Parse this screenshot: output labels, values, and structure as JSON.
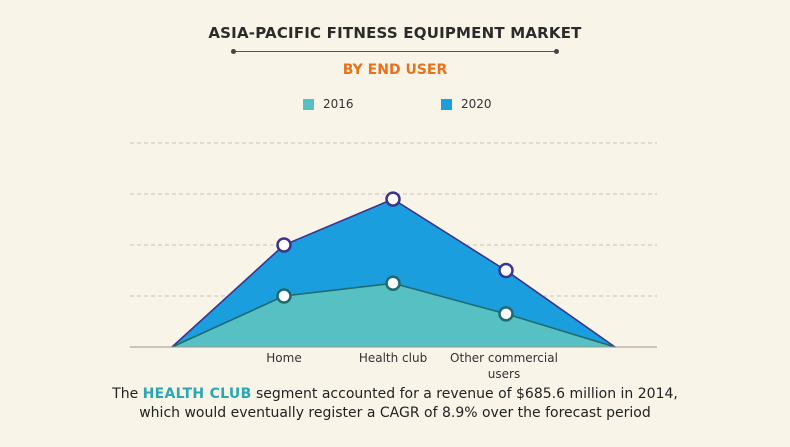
{
  "header": {
    "title": "ASIA-PACIFIC FITNESS EQUIPMENT MARKET",
    "subtitle": "BY END USER"
  },
  "colors": {
    "subtitle": "#e8711c",
    "series_2016_fill": "#56c0c2",
    "series_2016_line": "#1f6b6e",
    "series_2020_fill": "#1a9ede",
    "series_2020_line": "#3a3490",
    "highlight": "#2aa7b3",
    "grid": "#c9c4b8"
  },
  "chart_data": {
    "type": "area",
    "categories": [
      "Home",
      "Health club",
      "Other commercial users"
    ],
    "series": [
      {
        "name": "2016",
        "values": [
          2.0,
          2.5,
          1.3
        ]
      },
      {
        "name": "2020",
        "values": [
          4.0,
          5.8,
          3.0
        ]
      }
    ],
    "ylim": [
      0,
      8
    ],
    "grid": true,
    "legend_position": "top-center"
  },
  "footnote": {
    "pre": "The ",
    "highlight": "HEALTH CLUB",
    "post": " segment accounted for a revenue of $685.6 million in 2014,",
    "line2": "which would eventually register a CAGR of 8.9% over the forecast period"
  }
}
